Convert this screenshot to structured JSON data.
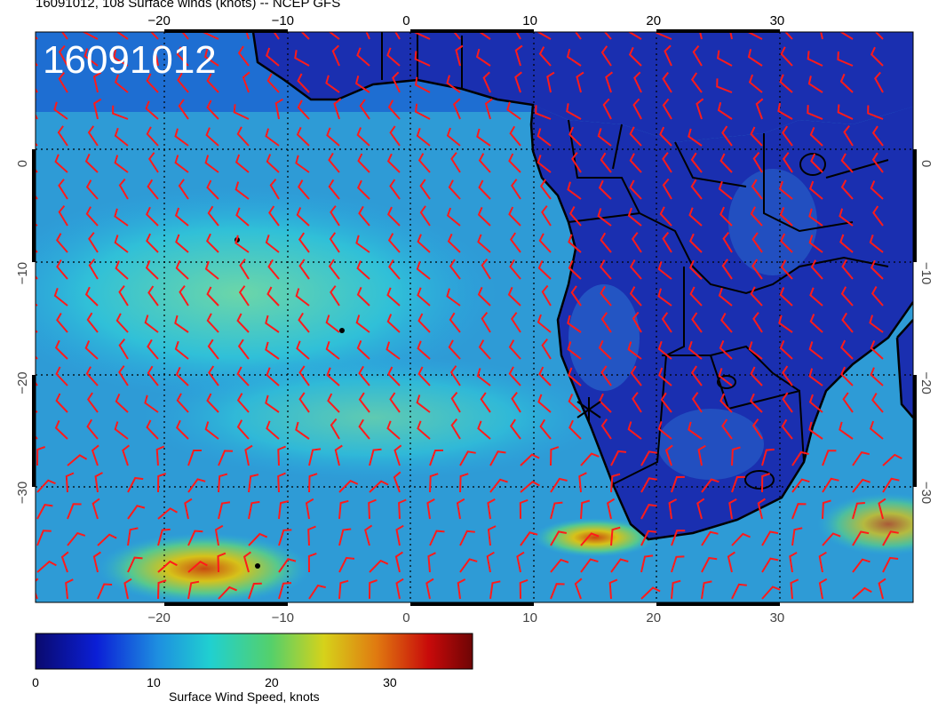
{
  "header": {
    "title": "16091012, 108 Surface winds (knots) -- NCEP GFS",
    "stamp": "16091012"
  },
  "map": {
    "lon_range": [
      -30,
      41
    ],
    "lat_range": [
      -40,
      12
    ],
    "lon_ticks": [
      -20,
      -10,
      0,
      10,
      20,
      30
    ],
    "lat_ticks": [
      0,
      -10,
      -20,
      -30
    ],
    "lon_tick_labels": [
      "−20",
      "−10",
      "0",
      "10",
      "20",
      "30"
    ],
    "lat_tick_labels": [
      "0",
      "−10",
      "−20",
      "−30"
    ],
    "grid": true,
    "ocean_color": "#1f8fd0",
    "land_color": "#1a2fb0",
    "barb_color": "#ff1a1a",
    "marker_icon": "star-x-icon"
  },
  "colorbar": {
    "title": "Surface Wind Speed, knots",
    "range": [
      0,
      37
    ],
    "ticks": [
      0,
      10,
      20,
      30
    ],
    "tick_labels": [
      "0",
      "10",
      "20",
      "30"
    ],
    "colors": [
      "#0a0a6e",
      "#0b1fd6",
      "#1e8fe0",
      "#20d0d0",
      "#55d06a",
      "#d6d21a",
      "#e07a10",
      "#c80a0a",
      "#6e0505"
    ]
  }
}
